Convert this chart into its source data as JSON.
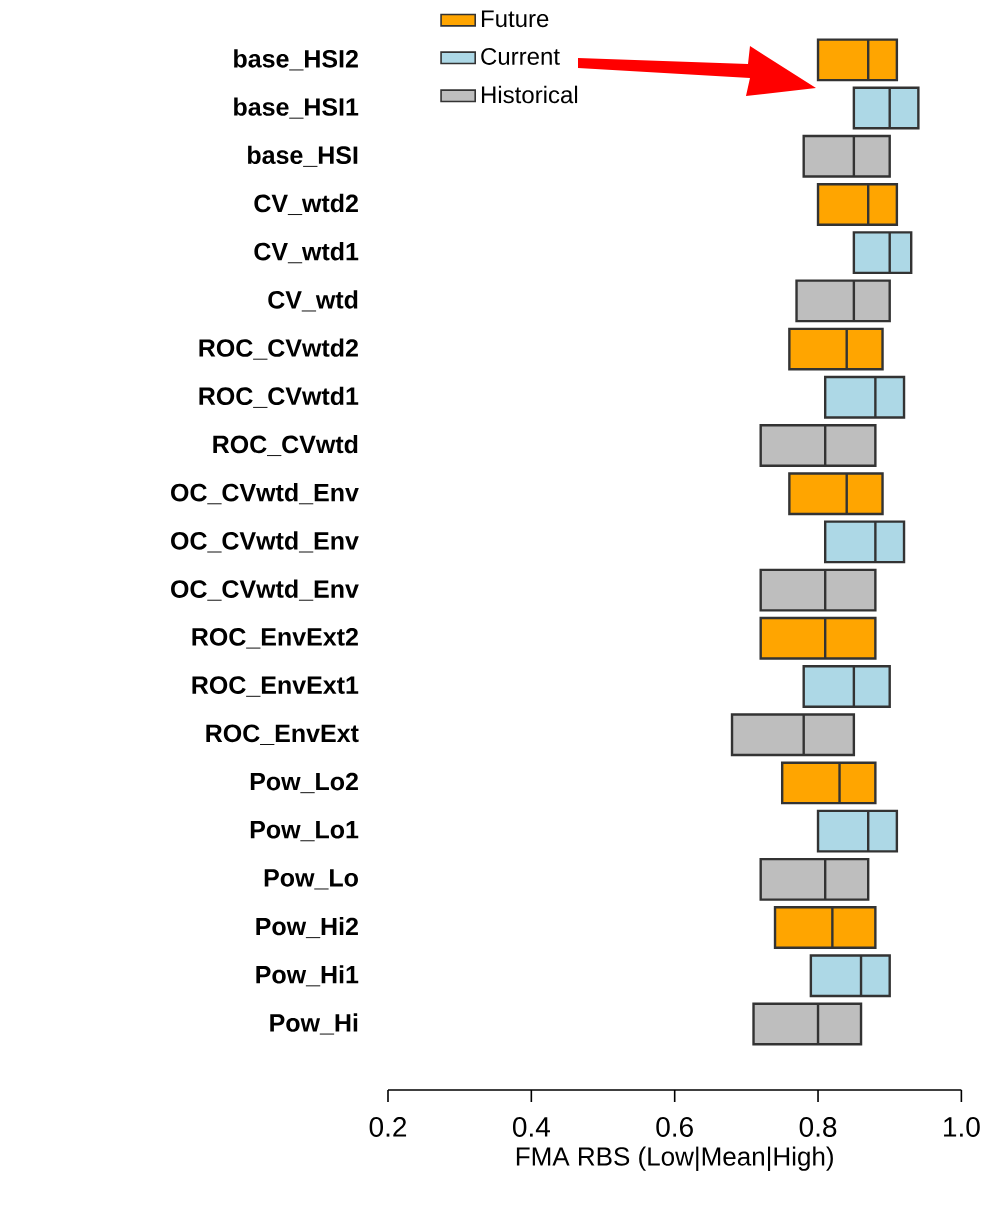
{
  "chart_data": {
    "type": "box",
    "orientation": "horizontal",
    "xlabel": "FMA RBS (Low|Mean|High)",
    "categories": [
      "base_HSI2",
      "base_HSI1",
      "base_HSI",
      "CV_wtd2",
      "CV_wtd1",
      "CV_wtd",
      "ROC_CVwtd2",
      "ROC_CVwtd1",
      "ROC_CVwtd",
      "OC_CVwtd_Env",
      "OC_CVwtd_Env",
      "OC_CVwtd_Env",
      "ROC_EnvExt2",
      "ROC_EnvExt1",
      "ROC_EnvExt",
      "Pow_Lo2",
      "Pow_Lo1",
      "Pow_Lo",
      "Pow_Hi2",
      "Pow_Hi1",
      "Pow_Hi"
    ],
    "xlim": [
      0.2,
      1.0
    ],
    "xticks": [
      {
        "value": 0.2,
        "label": "0.2"
      },
      {
        "value": 0.4,
        "label": "0.4"
      },
      {
        "value": 0.6,
        "label": "0.6"
      },
      {
        "value": 0.8,
        "label": "0.8"
      },
      {
        "value": 1.0,
        "label": "1.0"
      }
    ],
    "legend": "top left",
    "grid": false,
    "series": [
      {
        "name": "Future",
        "color": "#ffa500",
        "boxes": [
          {
            "low": 0.8,
            "q1": 0.8,
            "median": 0.87,
            "q3": 0.91,
            "high": 0.91
          },
          null,
          null,
          {
            "low": 0.8,
            "q1": 0.8,
            "median": 0.87,
            "q3": 0.91,
            "high": 0.91
          },
          null,
          null,
          {
            "low": 0.76,
            "q1": 0.76,
            "median": 0.84,
            "q3": 0.89,
            "high": 0.89
          },
          null,
          null,
          {
            "low": 0.76,
            "q1": 0.76,
            "median": 0.84,
            "q3": 0.89,
            "high": 0.89
          },
          null,
          null,
          {
            "low": 0.72,
            "q1": 0.72,
            "median": 0.81,
            "q3": 0.88,
            "high": 0.88
          },
          null,
          null,
          {
            "low": 0.75,
            "q1": 0.75,
            "median": 0.83,
            "q3": 0.88,
            "high": 0.88
          },
          null,
          null,
          {
            "low": 0.74,
            "q1": 0.74,
            "median": 0.82,
            "q3": 0.88,
            "high": 0.88
          },
          null,
          null
        ]
      },
      {
        "name": "Current",
        "color": "#add8e6",
        "boxes": [
          null,
          {
            "low": 0.85,
            "q1": 0.85,
            "median": 0.9,
            "q3": 0.94,
            "high": 0.94
          },
          null,
          null,
          {
            "low": 0.85,
            "q1": 0.85,
            "median": 0.9,
            "q3": 0.93,
            "high": 0.93
          },
          null,
          null,
          {
            "low": 0.81,
            "q1": 0.81,
            "median": 0.88,
            "q3": 0.92,
            "high": 0.92
          },
          null,
          null,
          {
            "low": 0.81,
            "q1": 0.81,
            "median": 0.88,
            "q3": 0.92,
            "high": 0.92
          },
          null,
          null,
          {
            "low": 0.78,
            "q1": 0.78,
            "median": 0.85,
            "q3": 0.9,
            "high": 0.9
          },
          null,
          null,
          {
            "low": 0.8,
            "q1": 0.8,
            "median": 0.87,
            "q3": 0.91,
            "high": 0.91
          },
          null,
          null,
          {
            "low": 0.79,
            "q1": 0.79,
            "median": 0.86,
            "q3": 0.9,
            "high": 0.9
          },
          null
        ]
      },
      {
        "name": "Historical",
        "color": "#bebebe",
        "boxes": [
          null,
          null,
          {
            "low": 0.78,
            "q1": 0.78,
            "median": 0.85,
            "q3": 0.9,
            "high": 0.9
          },
          null,
          null,
          {
            "low": 0.77,
            "q1": 0.77,
            "median": 0.85,
            "q3": 0.9,
            "high": 0.9
          },
          null,
          null,
          {
            "low": 0.72,
            "q1": 0.72,
            "median": 0.81,
            "q3": 0.88,
            "high": 0.88
          },
          null,
          null,
          {
            "low": 0.72,
            "q1": 0.72,
            "median": 0.81,
            "q3": 0.88,
            "high": 0.88
          },
          null,
          null,
          {
            "low": 0.68,
            "q1": 0.68,
            "median": 0.78,
            "q3": 0.85,
            "high": 0.85
          },
          null,
          null,
          {
            "low": 0.72,
            "q1": 0.72,
            "median": 0.81,
            "q3": 0.87,
            "high": 0.87
          },
          null,
          null,
          {
            "low": 0.71,
            "q1": 0.71,
            "median": 0.8,
            "q3": 0.86,
            "high": 0.86
          }
        ]
      }
    ]
  }
}
